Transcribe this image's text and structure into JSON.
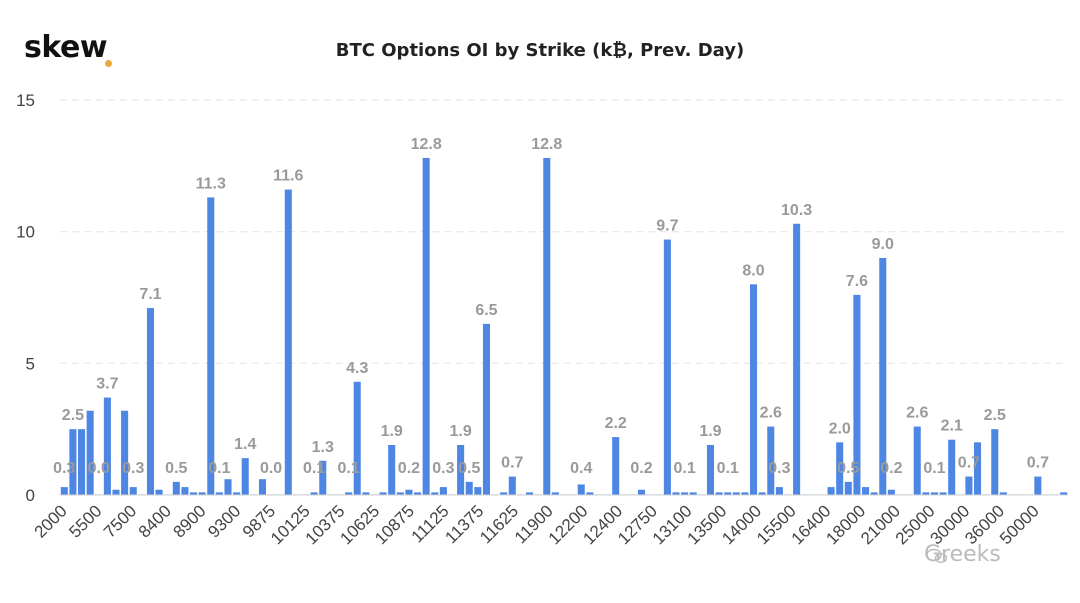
{
  "brand": {
    "name": "skew",
    "dot_color": "#e8a93b"
  },
  "watermark": "Greeks",
  "colors": {
    "bar": "#4e86e4",
    "label": "#9a9a9a",
    "grid": "#e6e6e6",
    "axis_text": "#444444"
  },
  "chart_data": {
    "type": "bar",
    "title": "BTC Options OI by Strike (k₿, Prev. Day)",
    "xlabel": "",
    "ylabel": "",
    "ylim": [
      0,
      15
    ],
    "yticks": [
      0,
      5,
      10,
      15
    ],
    "grid": true,
    "x_tick_labels": [
      "2000",
      "5500",
      "7500",
      "8400",
      "8900",
      "9300",
      "9875",
      "10125",
      "10375",
      "10625",
      "10875",
      "11125",
      "11375",
      "11625",
      "11900",
      "12200",
      "12400",
      "12750",
      "13100",
      "13500",
      "14000",
      "15500",
      "16400",
      "18000",
      "21000",
      "25000",
      "30000",
      "36000",
      "50000"
    ],
    "values": [
      0.3,
      2.5,
      2.5,
      3.2,
      0.0,
      3.7,
      0.2,
      3.2,
      0.3,
      0.0,
      7.1,
      0.2,
      0.0,
      0.5,
      0.3,
      0.1,
      0.1,
      11.3,
      0.1,
      0.6,
      0.1,
      1.4,
      0.0,
      0.6,
      0.0,
      0.0,
      11.6,
      0.0,
      0.0,
      0.1,
      1.3,
      0.0,
      0.0,
      0.1,
      4.3,
      0.1,
      0.0,
      0.1,
      1.9,
      0.1,
      0.2,
      0.1,
      12.8,
      0.1,
      0.3,
      0.0,
      1.9,
      0.5,
      0.3,
      6.5,
      0.0,
      0.1,
      0.7,
      0.0,
      0.1,
      0.0,
      12.8,
      0.1,
      0.0,
      0.0,
      0.4,
      0.1,
      0.0,
      0.0,
      2.2,
      0.0,
      0.0,
      0.2,
      0.0,
      0.0,
      9.7,
      0.1,
      0.1,
      0.1,
      0.0,
      1.9,
      0.1,
      0.1,
      0.1,
      0.1,
      8.0,
      0.1,
      2.6,
      0.3,
      0.0,
      10.3,
      0.0,
      0.0,
      0.0,
      0.3,
      2.0,
      0.5,
      7.6,
      0.3,
      0.1,
      9.0,
      0.2,
      0.0,
      0.0,
      2.6,
      0.1,
      0.1,
      0.1,
      2.1,
      0.0,
      0.7,
      2.0,
      0.0,
      2.5,
      0.1,
      0.0,
      0.0,
      0.0,
      0.7,
      0.0,
      0.0,
      0.1
    ],
    "data_labels": [
      {
        "index": 0,
        "text": "0.3"
      },
      {
        "index": 1,
        "text": "2.5"
      },
      {
        "index": 4,
        "text": "0.0"
      },
      {
        "index": 5,
        "text": "3.7"
      },
      {
        "index": 8,
        "text": "0.3"
      },
      {
        "index": 10,
        "text": "7.1"
      },
      {
        "index": 13,
        "text": "0.5"
      },
      {
        "index": 17,
        "text": "11.3"
      },
      {
        "index": 18,
        "text": "0.1"
      },
      {
        "index": 21,
        "text": "1.4"
      },
      {
        "index": 24,
        "text": "0.0"
      },
      {
        "index": 26,
        "text": "11.6"
      },
      {
        "index": 30,
        "text": "1.3"
      },
      {
        "index": 29,
        "text": "0.1"
      },
      {
        "index": 33,
        "text": "0.1"
      },
      {
        "index": 34,
        "text": "4.3"
      },
      {
        "index": 38,
        "text": "1.9"
      },
      {
        "index": 40,
        "text": "0.2"
      },
      {
        "index": 42,
        "text": "12.8"
      },
      {
        "index": 44,
        "text": "0.3"
      },
      {
        "index": 46,
        "text": "1.9"
      },
      {
        "index": 47,
        "text": "0.5"
      },
      {
        "index": 49,
        "text": "6.5"
      },
      {
        "index": 52,
        "text": "0.7"
      },
      {
        "index": 56,
        "text": "12.8"
      },
      {
        "index": 60,
        "text": "0.4"
      },
      {
        "index": 64,
        "text": "2.2"
      },
      {
        "index": 67,
        "text": "0.2"
      },
      {
        "index": 70,
        "text": "9.7"
      },
      {
        "index": 72,
        "text": "0.1"
      },
      {
        "index": 75,
        "text": "1.9"
      },
      {
        "index": 77,
        "text": "0.1"
      },
      {
        "index": 80,
        "text": "8.0"
      },
      {
        "index": 82,
        "text": "2.6"
      },
      {
        "index": 83,
        "text": "0.3"
      },
      {
        "index": 85,
        "text": "10.3"
      },
      {
        "index": 90,
        "text": "2.0"
      },
      {
        "index": 91,
        "text": "0.5"
      },
      {
        "index": 92,
        "text": "7.6"
      },
      {
        "index": 95,
        "text": "9.0"
      },
      {
        "index": 96,
        "text": "0.2"
      },
      {
        "index": 99,
        "text": "2.6"
      },
      {
        "index": 101,
        "text": "0.1"
      },
      {
        "index": 103,
        "text": "2.1"
      },
      {
        "index": 105,
        "text": "0.7"
      },
      {
        "index": 108,
        "text": "2.5"
      },
      {
        "index": 113,
        "text": "0.7"
      }
    ]
  }
}
